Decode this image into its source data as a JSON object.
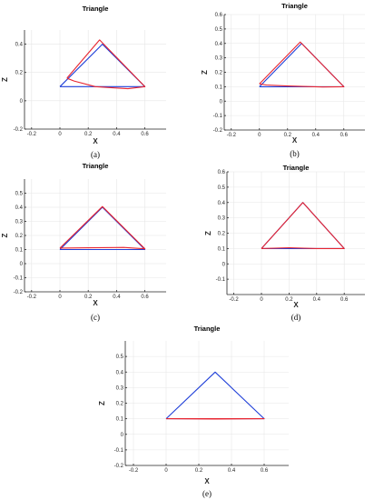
{
  "chart_data": [
    {
      "type": "line",
      "panel_label": "(a)",
      "title": "Triangle",
      "xlabel": "X",
      "ylabel": "Z",
      "xlim": [
        -0.25,
        0.75
      ],
      "ylim": [
        -0.2,
        0.5
      ],
      "xticks": [
        "-0.2",
        "0",
        "0.2",
        "0.4",
        "0.6"
      ],
      "yticks": [
        "-0.2",
        "0",
        "0.2",
        "0.4"
      ],
      "grid": true,
      "series": [
        {
          "color": "#1f3fd8",
          "x": [
            0.0,
            0.3,
            0.6,
            0.0
          ],
          "y": [
            0.1,
            0.4,
            0.1,
            0.1
          ]
        },
        {
          "color": "#e8242f",
          "x": [
            0.05,
            0.28,
            0.6,
            0.48,
            0.4,
            0.25,
            0.1,
            0.06,
            0.05
          ],
          "y": [
            0.16,
            0.43,
            0.1,
            0.085,
            0.09,
            0.1,
            0.14,
            0.155,
            0.16
          ]
        }
      ]
    },
    {
      "type": "line",
      "panel_label": "(b)",
      "title": "Triangle",
      "xlabel": "X",
      "ylabel": "Z",
      "xlim": [
        -0.25,
        0.75
      ],
      "ylim": [
        -0.2,
        0.6
      ],
      "xticks": [
        "-0.2",
        "0",
        "0.2",
        "0.4",
        "0.6"
      ],
      "yticks": [
        "-0.2",
        "-0.1",
        "0",
        "0.1",
        "0.2",
        "0.3",
        "0.4",
        "0.5",
        "0.6"
      ],
      "grid": true,
      "series": [
        {
          "color": "#1f3fd8",
          "x": [
            0.0,
            0.3,
            0.6,
            0.0
          ],
          "y": [
            0.1,
            0.4,
            0.1,
            0.1
          ]
        },
        {
          "color": "#e8242f",
          "x": [
            0.0,
            0.29,
            0.6,
            0.45,
            0.2,
            0.05,
            0.0
          ],
          "y": [
            0.12,
            0.41,
            0.1,
            0.098,
            0.105,
            0.112,
            0.12
          ]
        }
      ]
    },
    {
      "type": "line",
      "panel_label": "(c)",
      "title": "Triangle",
      "xlabel": "X",
      "ylabel": "Z",
      "xlim": [
        -0.25,
        0.75
      ],
      "ylim": [
        -0.2,
        0.6
      ],
      "xticks": [
        "-0.2",
        "0",
        "0.2",
        "0.4",
        "0.6"
      ],
      "yticks": [
        "-0.2",
        "-0.1",
        "0",
        "0.1",
        "0.2",
        "0.3",
        "0.4",
        "0.5"
      ],
      "grid": true,
      "series": [
        {
          "color": "#1f3fd8",
          "x": [
            0.0,
            0.3,
            0.6,
            0.0
          ],
          "y": [
            0.1,
            0.4,
            0.1,
            0.1
          ]
        },
        {
          "color": "#e8242f",
          "x": [
            0.0,
            0.3,
            0.6,
            0.45,
            0.2,
            0.0
          ],
          "y": [
            0.11,
            0.405,
            0.105,
            0.115,
            0.112,
            0.11
          ]
        }
      ]
    },
    {
      "type": "line",
      "panel_label": "(d)",
      "title": "Triangle",
      "xlabel": "X",
      "ylabel": "Z",
      "xlim": [
        -0.25,
        0.75
      ],
      "ylim": [
        -0.2,
        0.6
      ],
      "xticks": [
        "-0.2",
        "0",
        "0.2",
        "0.4",
        "0.6"
      ],
      "yticks": [
        "-0.1",
        "0",
        "0.1",
        "0.2",
        "0.3",
        "0.4",
        "0.5",
        "0.6"
      ],
      "grid": true,
      "series": [
        {
          "color": "#1f3fd8",
          "x": [
            0.0,
            0.3,
            0.6,
            0.0
          ],
          "y": [
            0.1,
            0.4,
            0.1,
            0.1
          ]
        },
        {
          "color": "#e8242f",
          "x": [
            0.0,
            0.3,
            0.6,
            0.4,
            0.2,
            0.0
          ],
          "y": [
            0.1,
            0.4,
            0.1,
            0.1,
            0.105,
            0.1
          ]
        }
      ]
    },
    {
      "type": "line",
      "panel_label": "(e)",
      "title": "Triangle",
      "xlabel": "X",
      "ylabel": "Z",
      "xlim": [
        -0.25,
        0.75
      ],
      "ylim": [
        -0.2,
        0.6
      ],
      "xticks": [
        "-0.2",
        "0",
        "0.2",
        "0.4",
        "0.6"
      ],
      "yticks": [
        "-0.2",
        "-0.1",
        "0",
        "0.1",
        "0.2",
        "0.3",
        "0.4",
        "0.5"
      ],
      "grid": true,
      "series": [
        {
          "color": "#1f3fd8",
          "x": [
            0.0,
            0.3,
            0.6,
            0.0
          ],
          "y": [
            0.1,
            0.4,
            0.1,
            0.1
          ]
        },
        {
          "color": "#e8242f",
          "x": [
            0.0,
            0.6,
            0.3,
            0.0
          ],
          "y": [
            0.1,
            0.1,
            0.098,
            0.1
          ]
        }
      ]
    }
  ]
}
